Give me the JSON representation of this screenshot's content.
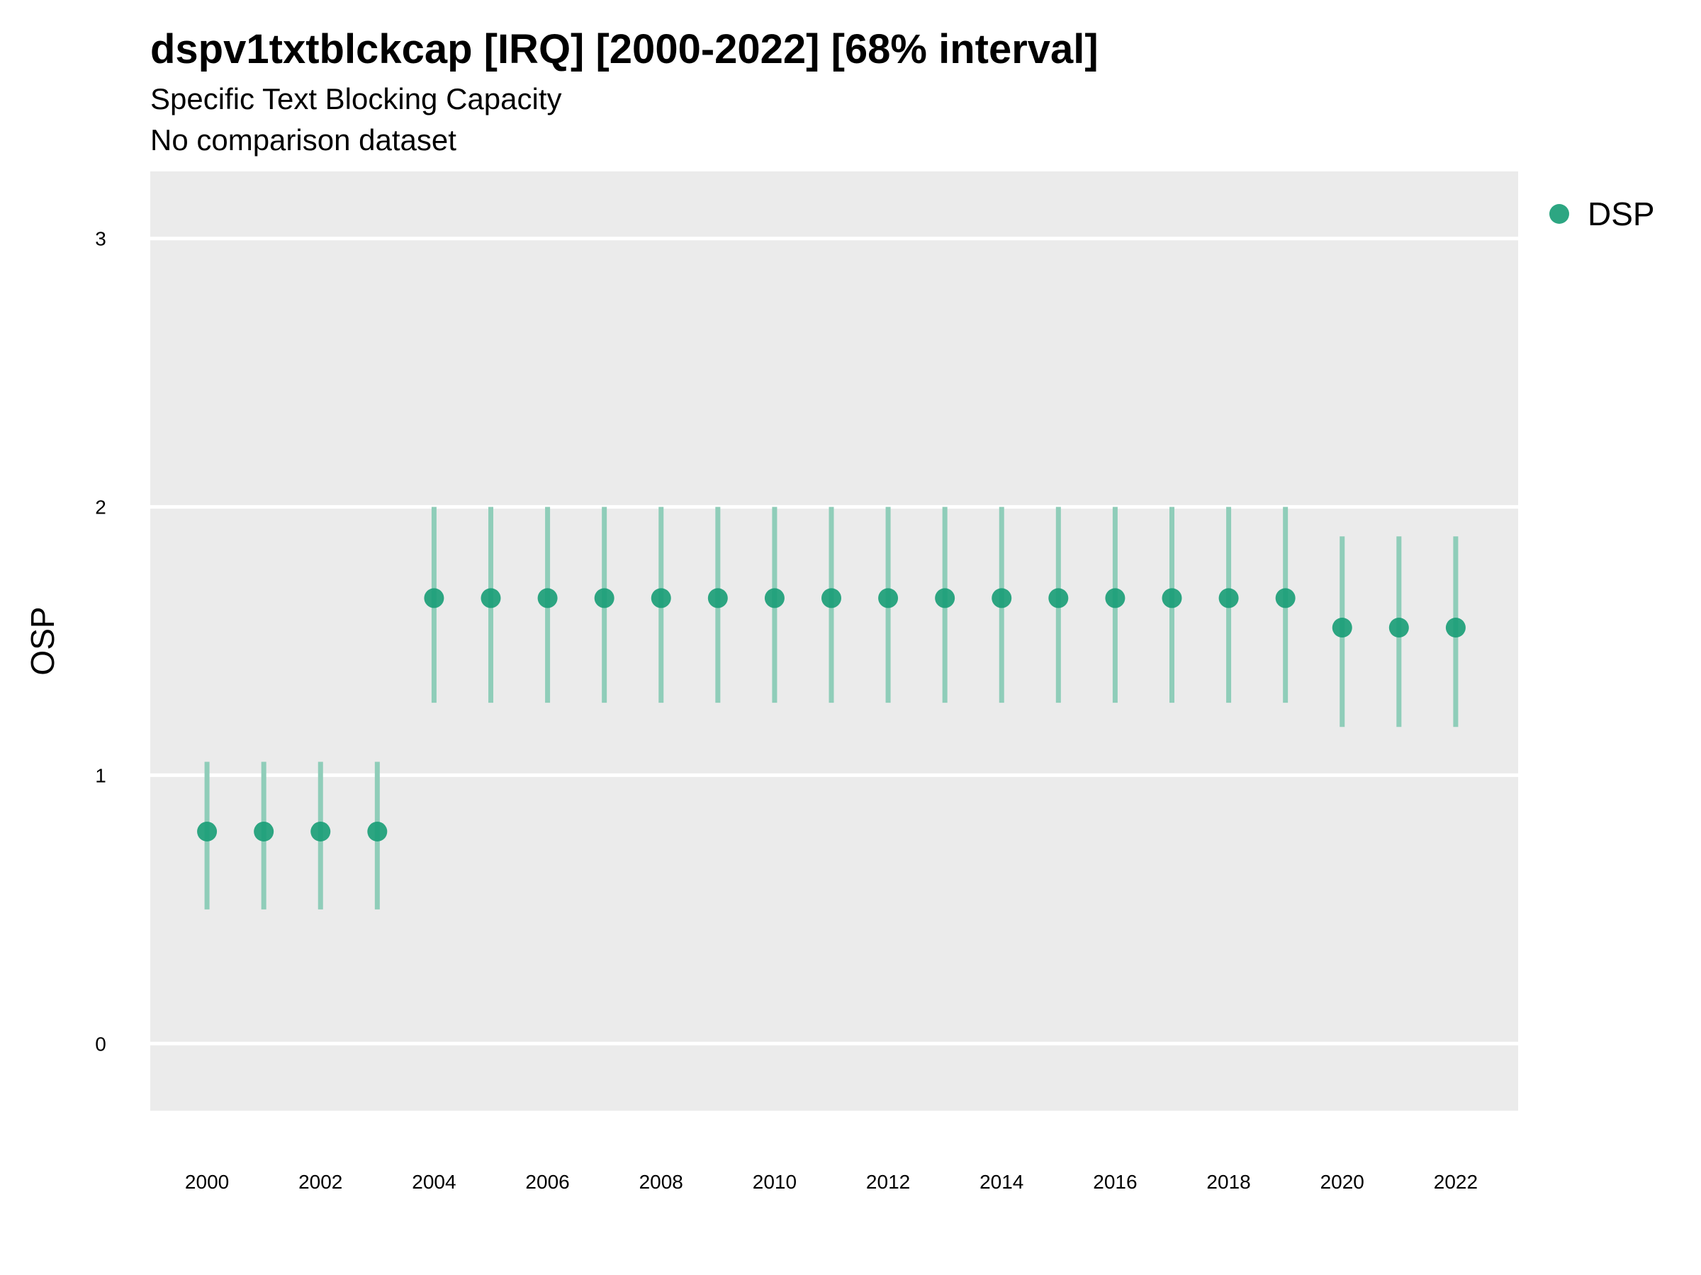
{
  "chart_data": {
    "type": "scatter",
    "title": "dspv1txtblckcap [IRQ] [2000-2022] [68% interval]",
    "subtitle": "Specific Text Blocking Capacity",
    "caption": "No comparison dataset",
    "xlabel": "",
    "ylabel": "OSP",
    "xlim": [
      1999,
      2023.1
    ],
    "ylim": [
      -0.25,
      3.25
    ],
    "x_ticks": [
      2000,
      2002,
      2004,
      2006,
      2008,
      2010,
      2012,
      2014,
      2016,
      2018,
      2020,
      2022
    ],
    "y_ticks": [
      0,
      1,
      2,
      3
    ],
    "grid": true,
    "legend_position": "right",
    "colors": {
      "point": "#1b9e77",
      "interval": "#8fcdb9",
      "panel": "#ebebeb",
      "grid": "#ffffff"
    },
    "series": [
      {
        "name": "DSP",
        "points": [
          {
            "x": 2000,
            "y": 0.79,
            "lo": 0.5,
            "hi": 1.05
          },
          {
            "x": 2001,
            "y": 0.79,
            "lo": 0.5,
            "hi": 1.05
          },
          {
            "x": 2002,
            "y": 0.79,
            "lo": 0.5,
            "hi": 1.05
          },
          {
            "x": 2003,
            "y": 0.79,
            "lo": 0.5,
            "hi": 1.05
          },
          {
            "x": 2004,
            "y": 1.66,
            "lo": 1.27,
            "hi": 2.0
          },
          {
            "x": 2005,
            "y": 1.66,
            "lo": 1.27,
            "hi": 2.0
          },
          {
            "x": 2006,
            "y": 1.66,
            "lo": 1.27,
            "hi": 2.0
          },
          {
            "x": 2007,
            "y": 1.66,
            "lo": 1.27,
            "hi": 2.0
          },
          {
            "x": 2008,
            "y": 1.66,
            "lo": 1.27,
            "hi": 2.0
          },
          {
            "x": 2009,
            "y": 1.66,
            "lo": 1.27,
            "hi": 2.0
          },
          {
            "x": 2010,
            "y": 1.66,
            "lo": 1.27,
            "hi": 2.0
          },
          {
            "x": 2011,
            "y": 1.66,
            "lo": 1.27,
            "hi": 2.0
          },
          {
            "x": 2012,
            "y": 1.66,
            "lo": 1.27,
            "hi": 2.0
          },
          {
            "x": 2013,
            "y": 1.66,
            "lo": 1.27,
            "hi": 2.0
          },
          {
            "x": 2014,
            "y": 1.66,
            "lo": 1.27,
            "hi": 2.0
          },
          {
            "x": 2015,
            "y": 1.66,
            "lo": 1.27,
            "hi": 2.0
          },
          {
            "x": 2016,
            "y": 1.66,
            "lo": 1.27,
            "hi": 2.0
          },
          {
            "x": 2017,
            "y": 1.66,
            "lo": 1.27,
            "hi": 2.0
          },
          {
            "x": 2018,
            "y": 1.66,
            "lo": 1.27,
            "hi": 2.0
          },
          {
            "x": 2019,
            "y": 1.66,
            "lo": 1.27,
            "hi": 2.0
          },
          {
            "x": 2020,
            "y": 1.55,
            "lo": 1.18,
            "hi": 1.89
          },
          {
            "x": 2021,
            "y": 1.55,
            "lo": 1.18,
            "hi": 1.89
          },
          {
            "x": 2022,
            "y": 1.55,
            "lo": 1.18,
            "hi": 1.89
          }
        ]
      }
    ]
  }
}
